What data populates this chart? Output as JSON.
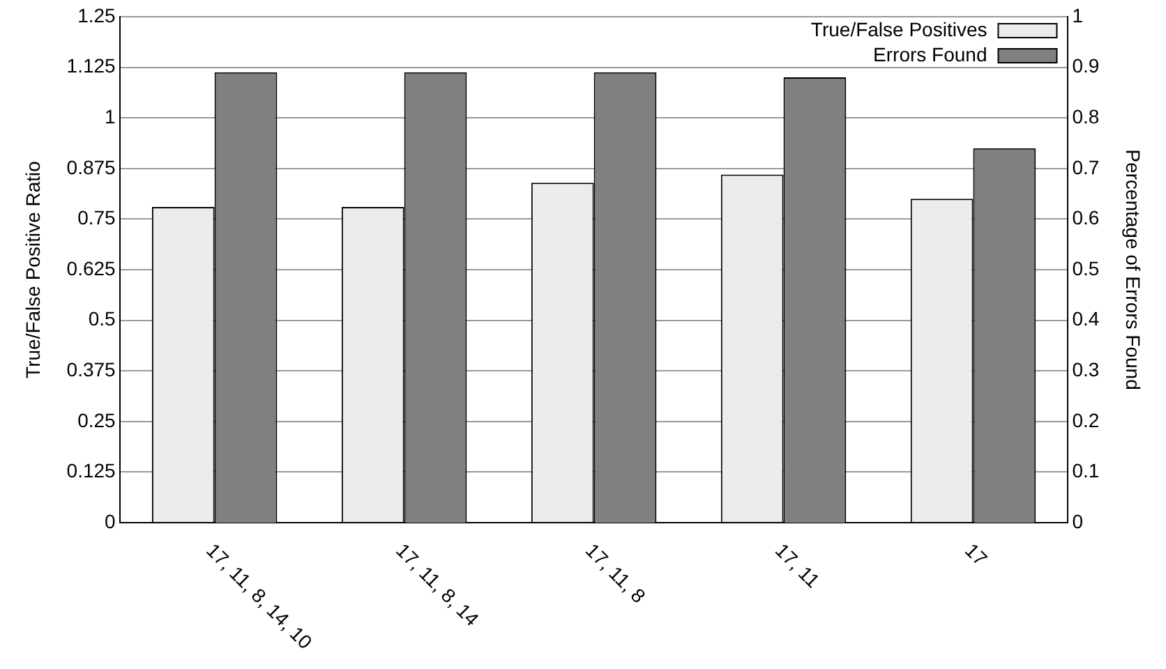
{
  "chart_data": {
    "type": "bar",
    "xlabel": null,
    "ylabel": "True/False Positive Ratio",
    "y2label": "Percentage of Errors Found",
    "categories": [
      "17, 11, 8, 14, 10",
      "17, 11, 8, 14",
      "17, 11, 8",
      "17, 11",
      "17"
    ],
    "series": [
      {
        "name": "True/False Positives",
        "color": "#ececec",
        "values": [
          0.78,
          0.78,
          0.84,
          0.86,
          0.8
        ]
      },
      {
        "name": "Errors Found",
        "color": "#808080",
        "axis": "y2",
        "values": [
          0.89,
          0.89,
          0.89,
          0.88,
          0.74
        ]
      }
    ],
    "ylim": [
      0,
      1.25
    ],
    "yticks": [
      0,
      0.125,
      0.25,
      0.375,
      0.5,
      0.625,
      0.75,
      0.875,
      1,
      1.125,
      1.25
    ],
    "y2lim": [
      0,
      1
    ],
    "y2ticks": [
      0,
      0.1,
      0.2,
      0.3,
      0.4,
      0.5,
      0.6,
      0.7,
      0.8,
      0.9,
      1
    ],
    "grid": "y",
    "legend": "top right"
  }
}
